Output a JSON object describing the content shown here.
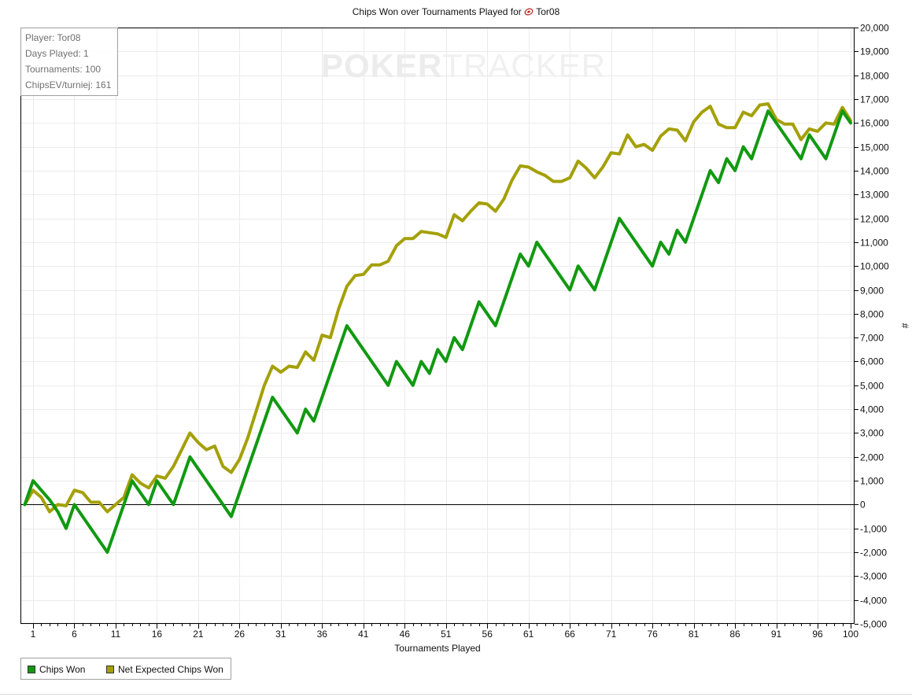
{
  "page": {
    "title_prefix": "Chips Won over Tournaments Played for",
    "title_player": "Tor08",
    "watermark_strong": "POKER",
    "watermark_light": "TRACKER"
  },
  "stats": [
    "Player: Tor08",
    "Days Played: 1",
    "Tournaments: 100",
    "ChipsEV/turniej: 161"
  ],
  "chart_data": {
    "type": "line",
    "xlabel": "Tournaments Played",
    "ylabel": "#",
    "xlim": [
      0,
      100
    ],
    "ylim": [
      -5000,
      20000
    ],
    "xticks": [
      1,
      6,
      11,
      16,
      21,
      26,
      31,
      36,
      41,
      46,
      51,
      56,
      61,
      66,
      71,
      76,
      81,
      86,
      91,
      96,
      100
    ],
    "ytick_step": 1000,
    "grid": true,
    "legend": "bottom-left",
    "series": [
      {
        "name": "Chips Won",
        "color": "#119911",
        "points": [
          [
            0,
            0
          ],
          [
            1,
            1000
          ],
          [
            3,
            200
          ],
          [
            4,
            -300
          ],
          [
            5,
            -1000
          ],
          [
            6,
            0
          ],
          [
            10,
            -2000
          ],
          [
            13,
            1000
          ],
          [
            15,
            0
          ],
          [
            16,
            1000
          ],
          [
            18,
            0
          ],
          [
            20,
            2000
          ],
          [
            25,
            -500
          ],
          [
            30,
            4500
          ],
          [
            33,
            3000
          ],
          [
            34,
            4000
          ],
          [
            35,
            3500
          ],
          [
            39,
            7500
          ],
          [
            44,
            5000
          ],
          [
            45,
            6000
          ],
          [
            47,
            5000
          ],
          [
            48,
            6000
          ],
          [
            49,
            5500
          ],
          [
            50,
            6500
          ],
          [
            51,
            6000
          ],
          [
            52,
            7000
          ],
          [
            53,
            6500
          ],
          [
            55,
            8500
          ],
          [
            57,
            7500
          ],
          [
            60,
            10500
          ],
          [
            61,
            10000
          ],
          [
            62,
            11000
          ],
          [
            66,
            9000
          ],
          [
            67,
            10000
          ],
          [
            69,
            9000
          ],
          [
            72,
            12000
          ],
          [
            76,
            10000
          ],
          [
            77,
            11000
          ],
          [
            78,
            10500
          ],
          [
            79,
            11500
          ],
          [
            80,
            11000
          ],
          [
            83,
            14000
          ],
          [
            84,
            13500
          ],
          [
            85,
            14500
          ],
          [
            86,
            14000
          ],
          [
            87,
            15000
          ],
          [
            88,
            14500
          ],
          [
            90,
            16500
          ],
          [
            94,
            14500
          ],
          [
            95,
            15500
          ],
          [
            97,
            14500
          ],
          [
            99,
            16500
          ],
          [
            100,
            16000
          ]
        ]
      },
      {
        "name": "Net Expected Chips Won",
        "color": "#a4a008",
        "points": [
          [
            0,
            0
          ],
          [
            1,
            600
          ],
          [
            2,
            300
          ],
          [
            3,
            -300
          ],
          [
            4,
            0
          ],
          [
            5,
            -50
          ],
          [
            6,
            600
          ],
          [
            7,
            500
          ],
          [
            8,
            100
          ],
          [
            9,
            100
          ],
          [
            10,
            -300
          ],
          [
            11,
            0
          ],
          [
            12,
            300
          ],
          [
            13,
            1250
          ],
          [
            14,
            900
          ],
          [
            15,
            700
          ],
          [
            16,
            1200
          ],
          [
            17,
            1100
          ],
          [
            18,
            1600
          ],
          [
            19,
            2300
          ],
          [
            20,
            3000
          ],
          [
            21,
            2600
          ],
          [
            22,
            2300
          ],
          [
            23,
            2450
          ],
          [
            24,
            1600
          ],
          [
            25,
            1350
          ],
          [
            26,
            1900
          ],
          [
            27,
            2800
          ],
          [
            28,
            3900
          ],
          [
            29,
            5000
          ],
          [
            30,
            5800
          ],
          [
            31,
            5550
          ],
          [
            32,
            5800
          ],
          [
            33,
            5750
          ],
          [
            34,
            6400
          ],
          [
            35,
            6050
          ],
          [
            36,
            7100
          ],
          [
            37,
            7000
          ],
          [
            38,
            8200
          ],
          [
            39,
            9150
          ],
          [
            40,
            9600
          ],
          [
            41,
            9650
          ],
          [
            42,
            10050
          ],
          [
            43,
            10050
          ],
          [
            44,
            10200
          ],
          [
            45,
            10850
          ],
          [
            46,
            11150
          ],
          [
            47,
            11150
          ],
          [
            48,
            11450
          ],
          [
            49,
            11400
          ],
          [
            50,
            11350
          ],
          [
            51,
            11200
          ],
          [
            52,
            12150
          ],
          [
            53,
            11900
          ],
          [
            54,
            12300
          ],
          [
            55,
            12650
          ],
          [
            56,
            12600
          ],
          [
            57,
            12300
          ],
          [
            58,
            12800
          ],
          [
            59,
            13600
          ],
          [
            60,
            14200
          ],
          [
            61,
            14150
          ],
          [
            62,
            13950
          ],
          [
            63,
            13800
          ],
          [
            64,
            13550
          ],
          [
            65,
            13550
          ],
          [
            66,
            13700
          ],
          [
            67,
            14400
          ],
          [
            68,
            14100
          ],
          [
            69,
            13700
          ],
          [
            70,
            14150
          ],
          [
            71,
            14750
          ],
          [
            72,
            14700
          ],
          [
            73,
            15500
          ],
          [
            74,
            15000
          ],
          [
            75,
            15100
          ],
          [
            76,
            14850
          ],
          [
            77,
            15450
          ],
          [
            78,
            15750
          ],
          [
            79,
            15700
          ],
          [
            80,
            15250
          ],
          [
            81,
            16050
          ],
          [
            82,
            16450
          ],
          [
            83,
            16700
          ],
          [
            84,
            15950
          ],
          [
            85,
            15800
          ],
          [
            86,
            15800
          ],
          [
            87,
            16450
          ],
          [
            88,
            16300
          ],
          [
            89,
            16750
          ],
          [
            90,
            16800
          ],
          [
            91,
            16150
          ],
          [
            92,
            15950
          ],
          [
            93,
            15950
          ],
          [
            94,
            15300
          ],
          [
            95,
            15750
          ],
          [
            96,
            15650
          ],
          [
            97,
            16000
          ],
          [
            98,
            15950
          ],
          [
            99,
            16650
          ],
          [
            100,
            16100
          ]
        ]
      }
    ]
  }
}
